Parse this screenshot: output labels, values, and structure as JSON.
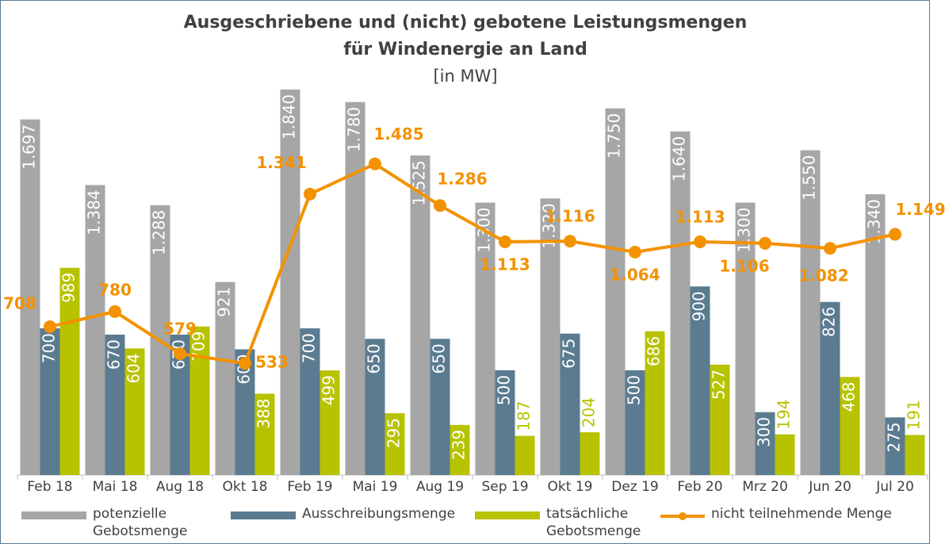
{
  "chart_data": {
    "type": "bar",
    "title": [
      "Ausgeschriebene und (nicht) gebotene Leistungsmengen",
      "für Windenergie an Land"
    ],
    "subtitle": "[in MW]",
    "categories": [
      "Feb 18",
      "Mai 18",
      "Aug 18",
      "Okt 18",
      "Feb 19",
      "Mai 19",
      "Aug 19",
      "Sep 19",
      "Okt 19",
      "Dez 19",
      "Feb 20",
      "Mrz 20",
      "Jun 20",
      "Jul 20"
    ],
    "ylim": [
      0,
      1900
    ],
    "series": [
      {
        "name": "potenzielle Gebotsmenge",
        "color": "#a6a6a6",
        "values": [
          1697,
          1384,
          1288,
          921,
          1840,
          1780,
          1525,
          1300,
          1320,
          1750,
          1640,
          1300,
          1550,
          1340
        ],
        "value_labels": [
          "1.697",
          "1.384",
          "1.288",
          "921",
          "1.840",
          "1.780",
          "1.525",
          "1.300",
          "1.320",
          "1.750",
          "1.640",
          "1.300",
          "1.550",
          "1.340"
        ]
      },
      {
        "name": "Ausschreibungsmenge",
        "color": "#5b7b90",
        "values": [
          700,
          670,
          670,
          600,
          700,
          650,
          650,
          500,
          675,
          500,
          900,
          300,
          826,
          275
        ]
      },
      {
        "name": "tatsächliche Gebotsmenge",
        "color": "#b7c300",
        "values": [
          989,
          604,
          709,
          388,
          499,
          295,
          239,
          187,
          204,
          686,
          527,
          194,
          468,
          191
        ]
      },
      {
        "name": "nicht teilnehmende Menge",
        "color": "#f39200",
        "type": "line",
        "values": [
          708,
          780,
          579,
          533,
          1341,
          1485,
          1286,
          1113,
          1116,
          1064,
          1113,
          1106,
          1082,
          1149
        ],
        "value_labels": [
          "708",
          "780",
          "579",
          "533",
          "1.341",
          "1.485",
          "1.286",
          "1.113",
          "1.116",
          "1.064",
          "1.113",
          "1.106",
          "1.082",
          "1.149"
        ]
      }
    ]
  }
}
